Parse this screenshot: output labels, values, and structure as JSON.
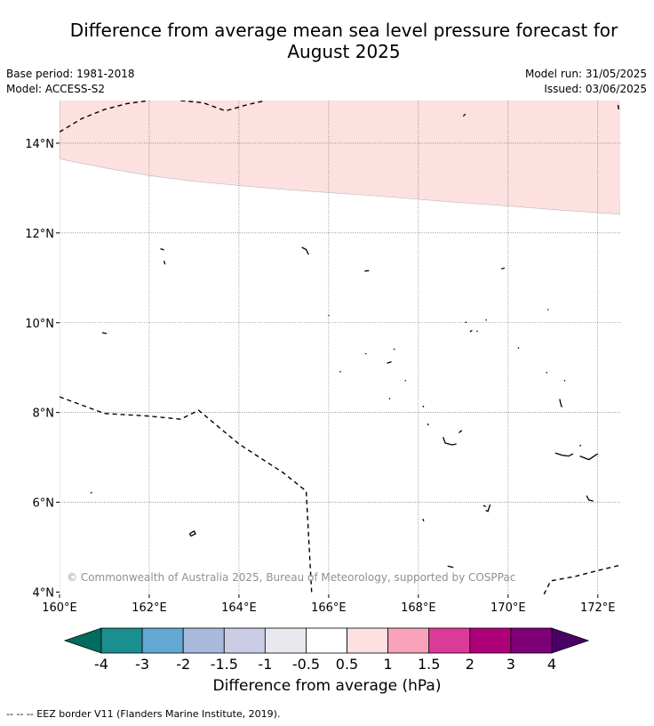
{
  "title_line1": "Difference from average mean sea level pressure forecast for",
  "title_line2": "August 2025",
  "meta_left": [
    "Base period: 1981-2018",
    "Model: ACCESS-S2"
  ],
  "meta_right": [
    "Model run: 31/05/2025",
    "Issued: 03/06/2025"
  ],
  "copyright": "© Commonwealth of Australia 2025, Bureau of Meteorology, supported by COSPPac",
  "x_ticks": [
    "160°E",
    "162°E",
    "164°E",
    "166°E",
    "168°E",
    "170°E",
    "172°E"
  ],
  "y_ticks": [
    "14°N",
    "12°N",
    "10°N",
    "8°N",
    "6°N",
    "4°N"
  ],
  "colorbar": {
    "label": "Difference from average (hPa)",
    "tick_labels": [
      "-4",
      "-3",
      "-2",
      "-1.5",
      "-1",
      "-0.5",
      "0.5",
      "1",
      "1.5",
      "2",
      "3",
      "4"
    ],
    "under_color": "#006b5f",
    "over_color": "#4a0066",
    "bins": [
      "#1b8e8f",
      "#63a8d3",
      "#a7badb",
      "#cbcde6",
      "#eae8ef",
      "#ffffff",
      "#fde0e0",
      "#f8a2bb",
      "#dc3a98",
      "#ad0078",
      "#7d0078"
    ]
  },
  "map": {
    "lon_range": [
      160,
      172.5
    ],
    "lat_range": [
      3.95,
      14.95
    ],
    "anomaly_band_color": "#fde0e0",
    "anomaly_band_value": "0.5 to 1 hPa",
    "band_boundary": [
      [
        160,
        13.65
      ],
      [
        161,
        13.45
      ],
      [
        162,
        13.28
      ],
      [
        163,
        13.15
      ],
      [
        164,
        13.06
      ],
      [
        165,
        12.97
      ],
      [
        166,
        12.9
      ],
      [
        167,
        12.83
      ],
      [
        168,
        12.75
      ],
      [
        169,
        12.67
      ],
      [
        170,
        12.6
      ],
      [
        171,
        12.52
      ],
      [
        172,
        12.45
      ],
      [
        172.5,
        12.42
      ]
    ],
    "eez_lines": [
      [
        [
          160,
          14.25
        ],
        [
          160.5,
          14.55
        ],
        [
          161,
          14.75
        ],
        [
          161.5,
          14.88
        ],
        [
          162,
          14.95
        ]
      ],
      [
        [
          162.7,
          14.95
        ],
        [
          163.2,
          14.9
        ],
        [
          163.7,
          14.72
        ],
        [
          164.2,
          14.86
        ],
        [
          164.6,
          14.95
        ]
      ],
      [
        [
          160,
          8.35
        ],
        [
          161,
          7.98
        ],
        [
          162,
          7.92
        ],
        [
          162.7,
          7.85
        ],
        [
          163.1,
          8.05
        ],
        [
          164,
          7.3
        ],
        [
          165,
          6.65
        ],
        [
          165.5,
          6.25
        ],
        [
          165.62,
          4.0
        ]
      ],
      [
        [
          170.8,
          3.95
        ],
        [
          170.95,
          4.25
        ],
        [
          171.5,
          4.35
        ],
        [
          172,
          4.48
        ],
        [
          172.5,
          4.6
        ]
      ],
      [
        [
          172.45,
          14.85
        ],
        [
          172.48,
          14.68
        ]
      ]
    ],
    "islands": [
      [
        [
          160.95,
          9.78
        ],
        [
          161.05,
          9.76
        ]
      ],
      [
        [
          160.7,
          6.2
        ],
        [
          160.72,
          6.23
        ]
      ],
      [
        [
          162.25,
          11.65
        ],
        [
          162.33,
          11.62
        ]
      ],
      [
        [
          162.35,
          11.3
        ],
        [
          162.33,
          11.38
        ]
      ],
      [
        [
          162.9,
          5.3
        ],
        [
          163.0,
          5.36
        ],
        [
          163.03,
          5.3
        ],
        [
          162.93,
          5.25
        ],
        [
          162.9,
          5.3
        ]
      ],
      [
        [
          165.4,
          11.68
        ],
        [
          165.5,
          11.63
        ],
        [
          165.55,
          11.52
        ]
      ],
      [
        [
          166.0,
          10.15
        ],
        [
          166.0,
          10.17
        ]
      ],
      [
        [
          166.25,
          8.92
        ],
        [
          166.27,
          8.9
        ]
      ],
      [
        [
          166.8,
          11.15
        ],
        [
          166.9,
          11.16
        ]
      ],
      [
        [
          166.82,
          9.3
        ],
        [
          166.84,
          9.32
        ]
      ],
      [
        [
          167.3,
          9.1
        ],
        [
          167.4,
          9.13
        ]
      ],
      [
        [
          167.45,
          9.4
        ],
        [
          167.47,
          9.42
        ]
      ],
      [
        [
          167.35,
          8.3
        ],
        [
          167.37,
          8.32
        ]
      ],
      [
        [
          167.7,
          8.7
        ],
        [
          167.72,
          8.72
        ]
      ],
      [
        [
          168.1,
          8.15
        ],
        [
          168.12,
          8.12
        ]
      ],
      [
        [
          168.2,
          7.75
        ],
        [
          168.23,
          7.72
        ]
      ],
      [
        [
          168.1,
          5.63
        ],
        [
          168.12,
          5.58
        ]
      ],
      [
        [
          168.55,
          7.45
        ],
        [
          168.6,
          7.32
        ],
        [
          168.75,
          7.28
        ],
        [
          168.85,
          7.3
        ]
      ],
      [
        [
          168.9,
          7.55
        ],
        [
          168.97,
          7.6
        ]
      ],
      [
        [
          168.65,
          4.58
        ],
        [
          168.78,
          4.55
        ]
      ],
      [
        [
          169.0,
          14.6
        ],
        [
          169.05,
          14.65
        ]
      ],
      [
        [
          169.05,
          10.0
        ],
        [
          169.07,
          10.02
        ]
      ],
      [
        [
          169.15,
          9.8
        ],
        [
          169.2,
          9.83
        ]
      ],
      [
        [
          169.3,
          9.82
        ],
        [
          169.32,
          9.8
        ]
      ],
      [
        [
          169.5,
          10.05
        ],
        [
          169.52,
          10.07
        ]
      ],
      [
        [
          169.45,
          5.93
        ],
        [
          169.5,
          5.9
        ]
      ],
      [
        [
          169.6,
          5.95
        ],
        [
          169.55,
          5.8
        ],
        [
          169.5,
          5.82
        ]
      ],
      [
        [
          169.85,
          11.2
        ],
        [
          169.92,
          11.22
        ]
      ],
      [
        [
          170.22,
          9.45
        ],
        [
          170.24,
          9.43
        ]
      ],
      [
        [
          170.88,
          10.28
        ],
        [
          170.9,
          10.3
        ]
      ],
      [
        [
          170.85,
          8.9
        ],
        [
          170.87,
          8.88
        ]
      ],
      [
        [
          171.15,
          8.3
        ],
        [
          171.17,
          8.2
        ],
        [
          171.2,
          8.12
        ]
      ],
      [
        [
          171.25,
          8.7
        ],
        [
          171.27,
          8.72
        ]
      ],
      [
        [
          171.05,
          7.1
        ],
        [
          171.2,
          7.05
        ],
        [
          171.35,
          7.03
        ],
        [
          171.45,
          7.08
        ]
      ],
      [
        [
          171.6,
          7.25
        ],
        [
          171.62,
          7.28
        ]
      ],
      [
        [
          171.6,
          7.03
        ],
        [
          171.8,
          6.95
        ],
        [
          171.95,
          7.05
        ],
        [
          172.0,
          7.08
        ]
      ],
      [
        [
          171.75,
          6.15
        ],
        [
          171.8,
          6.05
        ],
        [
          171.9,
          6.03
        ]
      ]
    ],
    "islands_note": "",
    "gridlines": true
  },
  "eez_legend": "--  --  -- EEZ border V11 (Flanders Marine Institute, 2019)."
}
